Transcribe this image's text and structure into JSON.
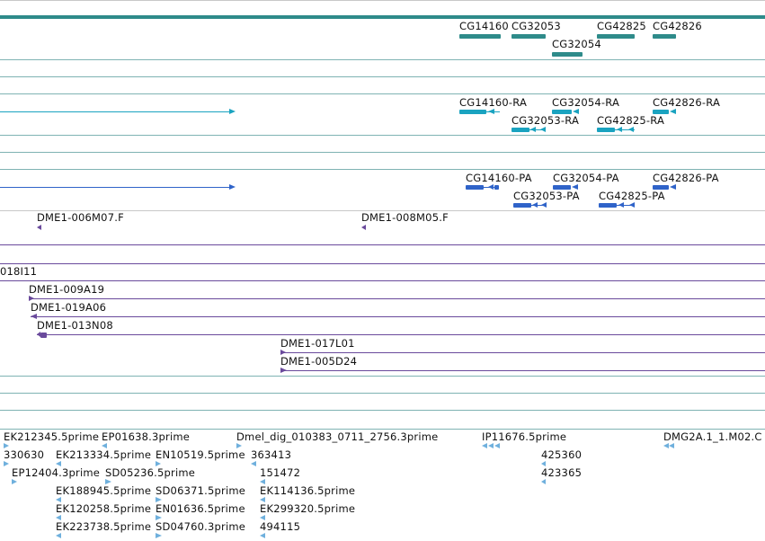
{
  "colors": {
    "gene_dark": "#2e8b8a",
    "transcript": "#1aa3c0",
    "protein": "#2f63c9",
    "clone": "#6a4a9c",
    "est": "#6fb0dd",
    "separator": "#7fb3b3"
  },
  "genes": {
    "labels": [
      "CG14160",
      "CG32053",
      "CG32054",
      "CG42825",
      "CG42826"
    ]
  },
  "transcripts": {
    "labels": [
      "CG14160-RA",
      "CG32054-RA",
      "CG42826-RA",
      "CG32053-RA",
      "CG42825-RA"
    ]
  },
  "proteins": {
    "labels": [
      "CG14160-PA",
      "CG32054-PA",
      "CG42826-PA",
      "CG32053-PA",
      "CG42825-PA"
    ]
  },
  "clones_top": {
    "labels": [
      "DME1-006M07.F",
      "DME1-008M05.F"
    ]
  },
  "clones": {
    "labels": [
      "018I11",
      "DME1-009A19",
      "DME1-019A06",
      "DME1-013N08",
      "DME1-017L01",
      "DME1-005D24"
    ]
  },
  "ests": {
    "labels": [
      "EK212345.5prime",
      "EP01638.3prime",
      "Dmel_dig_010383_0711_2756.3prime",
      "IP11676.5prime",
      "DMG2A.1_1.M02.C",
      "330630",
      "EK213334.5prime",
      "EN10519.5prime",
      "363413",
      "425360",
      "EP12404.3prime",
      "SD05236.5prime",
      "151472",
      "423365",
      "EK188945.5prime",
      "SD06371.5prime",
      "EK114136.5prime",
      "EK120258.5prime",
      "EN01636.5prime",
      "EK299320.5prime",
      "EK223738.5prime",
      "SD04760.3prime",
      "494115"
    ]
  }
}
